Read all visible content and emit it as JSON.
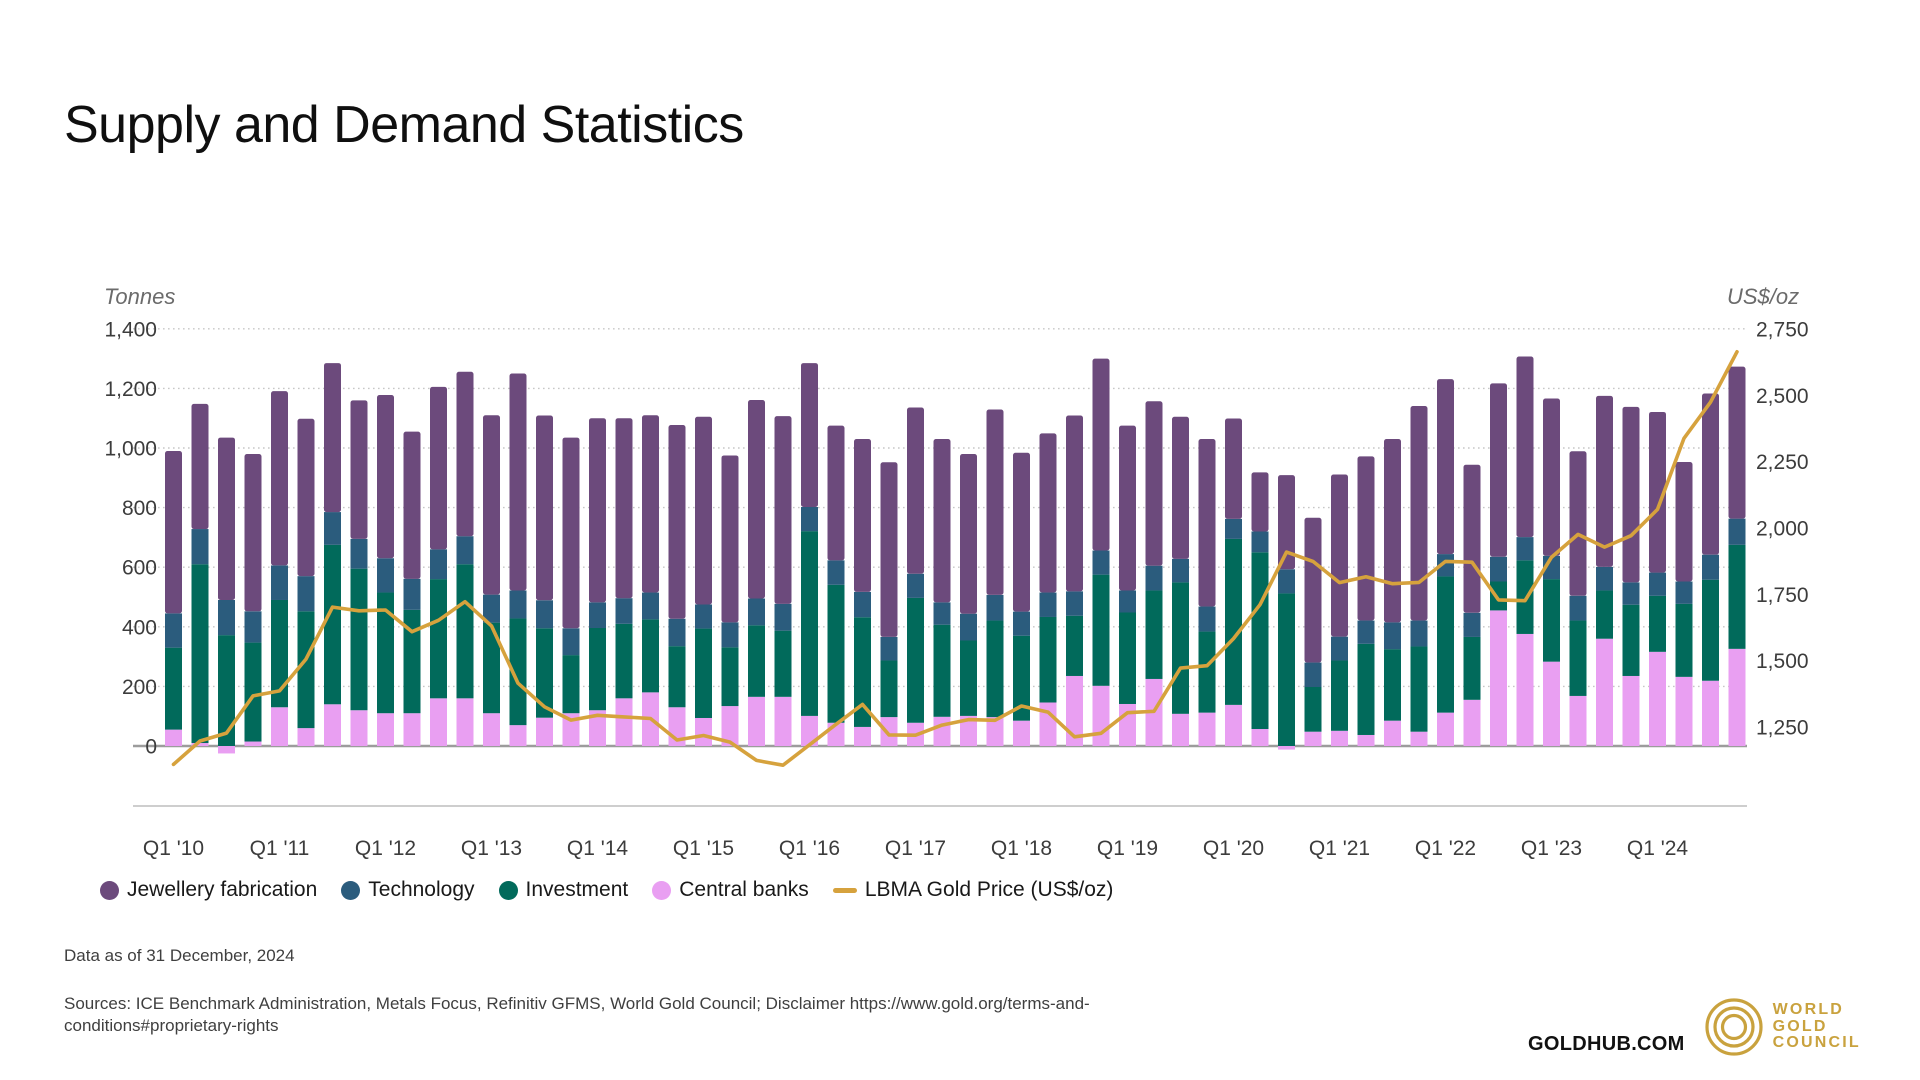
{
  "header": {
    "title": "Supply and Demand Statistics"
  },
  "axes": {
    "left": {
      "unit": "Tonnes",
      "ticks": [
        {
          "value": 1400,
          "label": "1,400"
        },
        {
          "value": 1200,
          "label": "1,200"
        },
        {
          "value": 1000,
          "label": "1,000"
        },
        {
          "value": 800,
          "label": "800"
        },
        {
          "value": 600,
          "label": "600"
        },
        {
          "value": 400,
          "label": "400"
        },
        {
          "value": 200,
          "label": "200"
        },
        {
          "value": 0,
          "label": "0"
        }
      ]
    },
    "right": {
      "unit": "US$/oz",
      "ticks": [
        {
          "value": 2750,
          "label": "2,750"
        },
        {
          "value": 2500,
          "label": "2,500"
        },
        {
          "value": 2250,
          "label": "2,250"
        },
        {
          "value": 2000,
          "label": "2,000"
        },
        {
          "value": 1750,
          "label": "1,750"
        },
        {
          "value": 1500,
          "label": "1,500"
        },
        {
          "value": 1250,
          "label": "1,250"
        }
      ]
    }
  },
  "legend": {
    "items": [
      {
        "id": "jewellery",
        "label": "Jewellery fabrication",
        "color": "#6C4A7C",
        "marker": "circle"
      },
      {
        "id": "technology",
        "label": "Technology",
        "color": "#2B5C7D",
        "marker": "circle"
      },
      {
        "id": "investment",
        "label": "Investment",
        "color": "#016A5B",
        "marker": "circle"
      },
      {
        "id": "central_banks",
        "label": "Central banks",
        "color": "#E99FF2",
        "marker": "circle"
      },
      {
        "id": "lbma",
        "label": "LBMA Gold Price (US$/oz)",
        "color": "#D6A23D",
        "marker": "line"
      }
    ]
  },
  "chart_data": {
    "type": "bar",
    "subtype": "stacked-bars-with-line",
    "stack_order": [
      "central_banks",
      "investment",
      "technology",
      "jewellery"
    ],
    "line_series": "lbma_price",
    "axis_left_range": [
      0,
      1400
    ],
    "axis_right_range": [
      1250,
      2750
    ],
    "grid": "dotted-horizontal",
    "legend_position": "bottom-left",
    "x_tick_labels": [
      "Q1 '10",
      "Q1 '11",
      "Q1 '12",
      "Q1 '13",
      "Q1 '14",
      "Q1 '15",
      "Q1 '16",
      "Q1 '17",
      "Q1 '18",
      "Q1 '19",
      "Q1 '20",
      "Q1 '21",
      "Q1 '22",
      "Q1 '23",
      "Q1 '24"
    ],
    "quarters": [
      {
        "q": "Q1 '10",
        "jewellery": 545,
        "technology": 115,
        "investment": 275,
        "central_banks": 55,
        "lbma_price": 1109
      },
      {
        "q": "Q2 '10",
        "jewellery": 420,
        "technology": 118,
        "investment": 600,
        "central_banks": 10,
        "lbma_price": 1197
      },
      {
        "q": "Q3 '10",
        "jewellery": 545,
        "technology": 118,
        "investment": 372,
        "central_banks": -25,
        "lbma_price": 1227
      },
      {
        "q": "Q4 '10",
        "jewellery": 528,
        "technology": 105,
        "investment": 332,
        "central_banks": 15,
        "lbma_price": 1367
      },
      {
        "q": "Q1 '11",
        "jewellery": 585,
        "technology": 116,
        "investment": 360,
        "central_banks": 130,
        "lbma_price": 1386
      },
      {
        "q": "Q2 '11",
        "jewellery": 528,
        "technology": 118,
        "investment": 392,
        "central_banks": 60,
        "lbma_price": 1506
      },
      {
        "q": "Q3 '11",
        "jewellery": 500,
        "technology": 110,
        "investment": 535,
        "central_banks": 140,
        "lbma_price": 1702
      },
      {
        "q": "Q4 '11",
        "jewellery": 465,
        "technology": 100,
        "investment": 475,
        "central_banks": 120,
        "lbma_price": 1688
      },
      {
        "q": "Q1 '12",
        "jewellery": 548,
        "technology": 115,
        "investment": 405,
        "central_banks": 110,
        "lbma_price": 1691
      },
      {
        "q": "Q2 '12",
        "jewellery": 494,
        "technology": 104,
        "investment": 347,
        "central_banks": 110,
        "lbma_price": 1609
      },
      {
        "q": "Q3 '12",
        "jewellery": 545,
        "technology": 100,
        "investment": 400,
        "central_banks": 160,
        "lbma_price": 1652
      },
      {
        "q": "Q4 '12",
        "jewellery": 552,
        "technology": 94,
        "investment": 450,
        "central_banks": 160,
        "lbma_price": 1722
      },
      {
        "q": "Q1 '13",
        "jewellery": 602,
        "technology": 94,
        "investment": 304,
        "central_banks": 110,
        "lbma_price": 1631
      },
      {
        "q": "Q2 '13",
        "jewellery": 728,
        "technology": 94,
        "investment": 358,
        "central_banks": 70,
        "lbma_price": 1415
      },
      {
        "q": "Q3 '13",
        "jewellery": 620,
        "technology": 94,
        "investment": 300,
        "central_banks": 95,
        "lbma_price": 1326
      },
      {
        "q": "Q4 '13",
        "jewellery": 640,
        "technology": 90,
        "investment": 195,
        "central_banks": 110,
        "lbma_price": 1276
      },
      {
        "q": "Q1 '14",
        "jewellery": 618,
        "technology": 86,
        "investment": 276,
        "central_banks": 120,
        "lbma_price": 1294
      },
      {
        "q": "Q2 '14",
        "jewellery": 604,
        "technology": 86,
        "investment": 250,
        "central_banks": 160,
        "lbma_price": 1288
      },
      {
        "q": "Q3 '14",
        "jewellery": 595,
        "technology": 90,
        "investment": 245,
        "central_banks": 180,
        "lbma_price": 1282
      },
      {
        "q": "Q4 '14",
        "jewellery": 650,
        "technology": 92,
        "investment": 205,
        "central_banks": 130,
        "lbma_price": 1201
      },
      {
        "q": "Q1 '15",
        "jewellery": 630,
        "technology": 81,
        "investment": 300,
        "central_banks": 94,
        "lbma_price": 1218
      },
      {
        "q": "Q2 '15",
        "jewellery": 560,
        "technology": 84,
        "investment": 197,
        "central_banks": 134,
        "lbma_price": 1193
      },
      {
        "q": "Q3 '15",
        "jewellery": 666,
        "technology": 90,
        "investment": 240,
        "central_banks": 165,
        "lbma_price": 1124
      },
      {
        "q": "Q4 '15",
        "jewellery": 630,
        "technology": 90,
        "investment": 222,
        "central_banks": 165,
        "lbma_price": 1106
      },
      {
        "q": "Q1 '16",
        "jewellery": 483,
        "technology": 81,
        "investment": 620,
        "central_banks": 101,
        "lbma_price": 1183
      },
      {
        "q": "Q2 '16",
        "jewellery": 452,
        "technology": 82,
        "investment": 463,
        "central_banks": 78,
        "lbma_price": 1260
      },
      {
        "q": "Q3 '16",
        "jewellery": 513,
        "technology": 85,
        "investment": 368,
        "central_banks": 64,
        "lbma_price": 1335
      },
      {
        "q": "Q4 '16",
        "jewellery": 586,
        "technology": 79,
        "investment": 190,
        "central_banks": 97,
        "lbma_price": 1220
      },
      {
        "q": "Q1 '17",
        "jewellery": 558,
        "technology": 81,
        "investment": 419,
        "central_banks": 78,
        "lbma_price": 1219
      },
      {
        "q": "Q2 '17",
        "jewellery": 548,
        "technology": 75,
        "investment": 309,
        "central_banks": 98,
        "lbma_price": 1257
      },
      {
        "q": "Q3 '17",
        "jewellery": 536,
        "technology": 90,
        "investment": 253,
        "central_banks": 101,
        "lbma_price": 1278
      },
      {
        "q": "Q4 '17",
        "jewellery": 622,
        "technology": 86,
        "investment": 324,
        "central_banks": 97,
        "lbma_price": 1275
      },
      {
        "q": "Q1 '18",
        "jewellery": 533,
        "technology": 81,
        "investment": 285,
        "central_banks": 85,
        "lbma_price": 1329
      },
      {
        "q": "Q2 '18",
        "jewellery": 534,
        "technology": 82,
        "investment": 287,
        "central_banks": 146,
        "lbma_price": 1306
      },
      {
        "q": "Q3 '18",
        "jewellery": 590,
        "technology": 82,
        "investment": 202,
        "central_banks": 235,
        "lbma_price": 1213
      },
      {
        "q": "Q4 '18",
        "jewellery": 644,
        "technology": 81,
        "investment": 373,
        "central_banks": 202,
        "lbma_price": 1226
      },
      {
        "q": "Q1 '19",
        "jewellery": 553,
        "technology": 74,
        "investment": 307,
        "central_banks": 141,
        "lbma_price": 1304
      },
      {
        "q": "Q2 '19",
        "jewellery": 552,
        "technology": 83,
        "investment": 297,
        "central_banks": 225,
        "lbma_price": 1309
      },
      {
        "q": "Q3 '19",
        "jewellery": 477,
        "technology": 79,
        "investment": 441,
        "central_banks": 108,
        "lbma_price": 1472
      },
      {
        "q": "Q4 '19",
        "jewellery": 562,
        "technology": 84,
        "investment": 272,
        "central_banks": 112,
        "lbma_price": 1481
      },
      {
        "q": "Q1 '20",
        "jewellery": 337,
        "technology": 67,
        "investment": 557,
        "central_banks": 138,
        "lbma_price": 1583
      },
      {
        "q": "Q2 '20",
        "jewellery": 198,
        "technology": 70,
        "investment": 593,
        "central_banks": 57,
        "lbma_price": 1711
      },
      {
        "q": "Q3 '20",
        "jewellery": 316,
        "technology": 81,
        "investment": 512,
        "central_banks": -12,
        "lbma_price": 1909
      },
      {
        "q": "Q4 '20",
        "jewellery": 486,
        "technology": 82,
        "investment": 150,
        "central_banks": 48,
        "lbma_price": 1874
      },
      {
        "q": "Q1 '21",
        "jewellery": 544,
        "technology": 80,
        "investment": 236,
        "central_banks": 51,
        "lbma_price": 1794
      },
      {
        "q": "Q2 '21",
        "jewellery": 551,
        "technology": 78,
        "investment": 306,
        "central_banks": 37,
        "lbma_price": 1816
      },
      {
        "q": "Q3 '21",
        "jewellery": 615,
        "technology": 90,
        "investment": 240,
        "central_banks": 85,
        "lbma_price": 1790
      },
      {
        "q": "Q4 '21",
        "jewellery": 720,
        "technology": 87,
        "investment": 286,
        "central_banks": 48,
        "lbma_price": 1795
      },
      {
        "q": "Q1 '22",
        "jewellery": 587,
        "technology": 75,
        "investment": 457,
        "central_banks": 112,
        "lbma_price": 1874
      },
      {
        "q": "Q2 '22",
        "jewellery": 497,
        "technology": 81,
        "investment": 211,
        "central_banks": 155,
        "lbma_price": 1871
      },
      {
        "q": "Q3 '22",
        "jewellery": 582,
        "technology": 83,
        "investment": 97,
        "central_banks": 455,
        "lbma_price": 1729
      },
      {
        "q": "Q4 '22",
        "jewellery": 606,
        "technology": 78,
        "investment": 247,
        "central_banks": 376,
        "lbma_price": 1726
      },
      {
        "q": "Q1 '23",
        "jewellery": 528,
        "technology": 78,
        "investment": 277,
        "central_banks": 283,
        "lbma_price": 1890
      },
      {
        "q": "Q2 '23",
        "jewellery": 485,
        "technology": 83,
        "investment": 253,
        "central_banks": 168,
        "lbma_price": 1976
      },
      {
        "q": "Q3 '23",
        "jewellery": 574,
        "technology": 79,
        "investment": 162,
        "central_banks": 360,
        "lbma_price": 1928
      },
      {
        "q": "Q4 '23",
        "jewellery": 589,
        "technology": 75,
        "investment": 239,
        "central_banks": 235,
        "lbma_price": 1971
      },
      {
        "q": "Q1 '24",
        "jewellery": 539,
        "technology": 78,
        "investment": 188,
        "central_banks": 316,
        "lbma_price": 2070
      },
      {
        "q": "Q2 '24",
        "jewellery": 401,
        "technology": 75,
        "investment": 245,
        "central_banks": 232,
        "lbma_price": 2338
      },
      {
        "q": "Q3 '24",
        "jewellery": 541,
        "technology": 84,
        "investment": 339,
        "central_banks": 219,
        "lbma_price": 2474
      },
      {
        "q": "Q4 '24",
        "jewellery": 510,
        "technology": 88,
        "investment": 349,
        "central_banks": 326,
        "lbma_price": 2664
      }
    ]
  },
  "footer": {
    "data_as_of": "Data as of 31 December, 2024",
    "sources": "Sources: ICE Benchmark Administration, Metals Focus, Refinitiv GFMS, World Gold Council; Disclaimer https://www.gold.org/terms-and-conditions#proprietary-rights"
  },
  "branding": {
    "site": "GOLDHUB.COM",
    "logo_line1": "WORLD",
    "logo_line2": "GOLD",
    "logo_line3": "COUNCIL"
  }
}
